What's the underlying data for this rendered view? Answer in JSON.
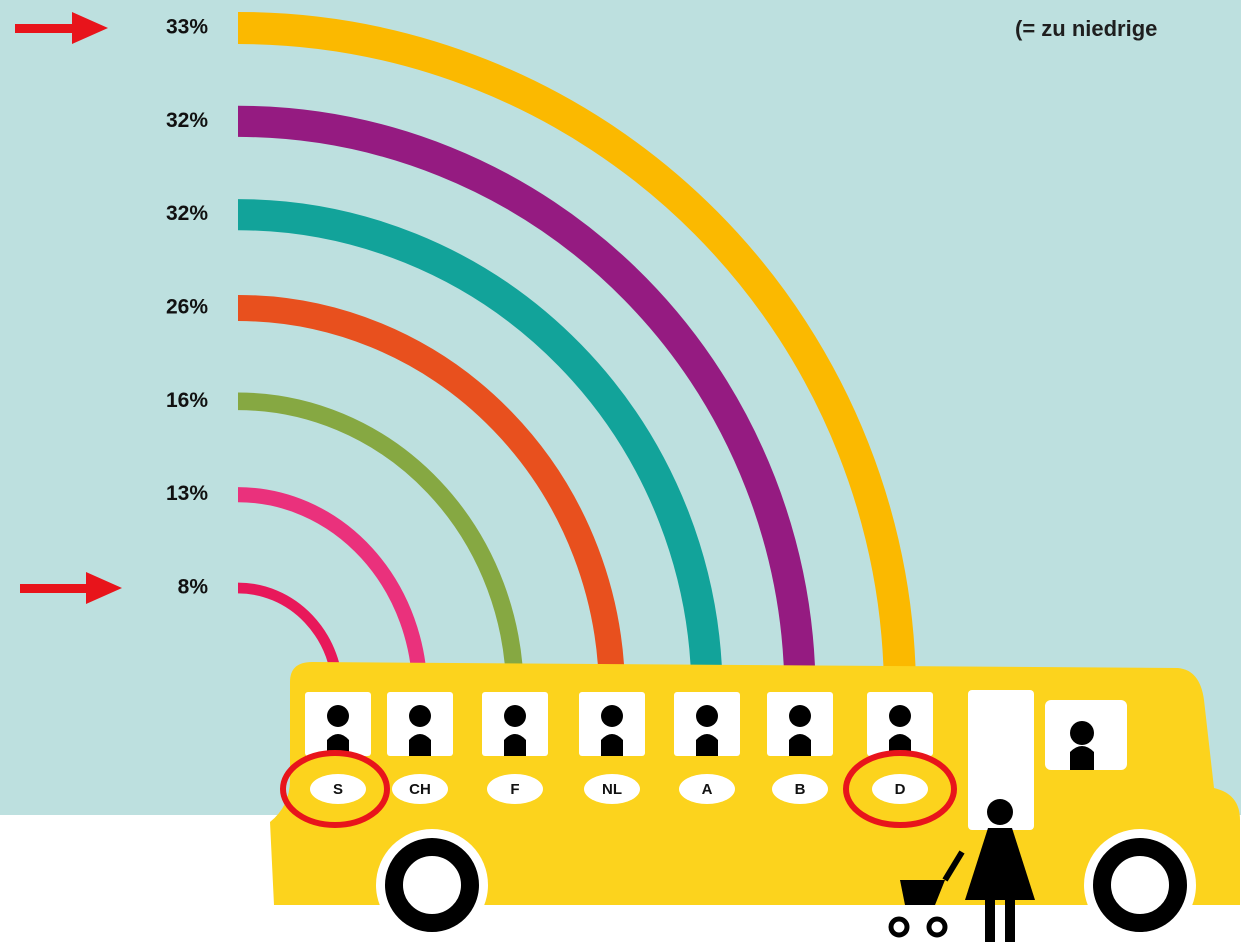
{
  "chart_data": {
    "type": "arc",
    "annotation": "(= zu niedrige",
    "categories": [
      "S",
      "CH",
      "F",
      "NL",
      "A",
      "B",
      "D"
    ],
    "values": [
      8,
      13,
      16,
      26,
      32,
      32,
      33
    ],
    "value_labels": [
      "8%",
      "13%",
      "16%",
      "26%",
      "32%",
      "32%",
      "33%"
    ],
    "colors": [
      "#e8185a",
      "#ea317c",
      "#86a842",
      "#e8501e",
      "#12a39a",
      "#951b81",
      "#fbb900"
    ]
  }
}
